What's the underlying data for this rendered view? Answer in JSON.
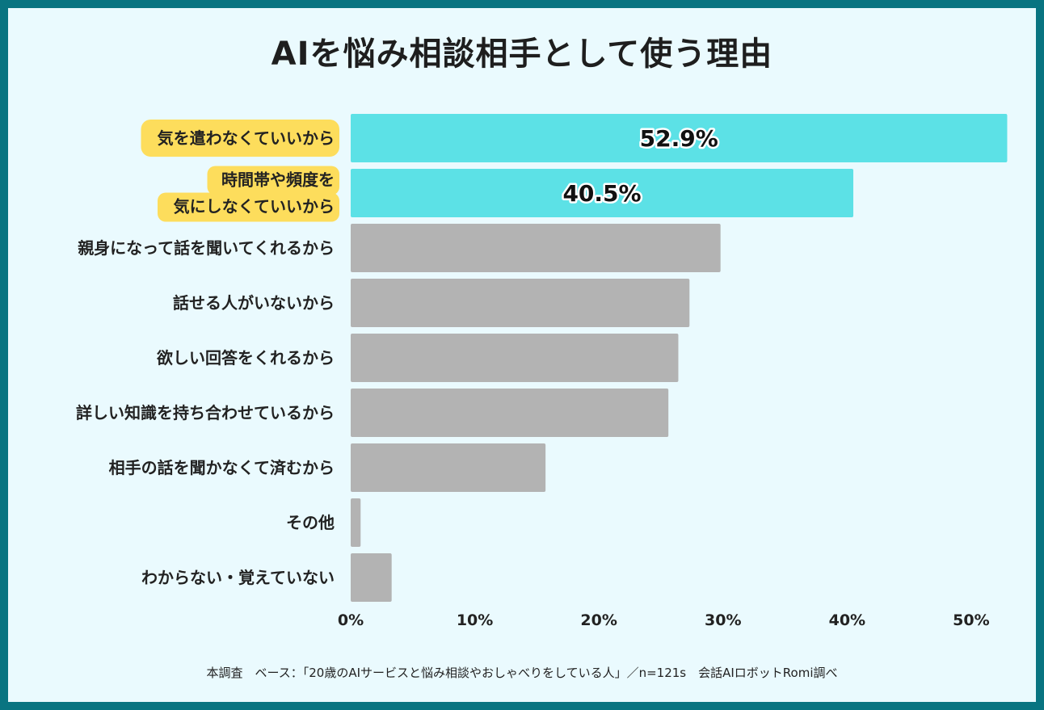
{
  "chart_data": {
    "type": "bar",
    "orientation": "horizontal",
    "title": "AIを悩み相談相手として使う理由",
    "categories": [
      "気を遣わなくていいから",
      "時間帯や頻度を\n気にしなくていいから",
      "親身になって話を聞いてくれるから",
      "話せる人がいないから",
      "欲しい回答をくれるから",
      "詳しい知識を持ち合わせているから",
      "相手の話を聞かなくて済むから",
      "その他",
      "わからない・覚えていない"
    ],
    "values": [
      52.9,
      40.5,
      29.8,
      27.3,
      26.4,
      25.6,
      15.7,
      0.8,
      3.3
    ],
    "data_labels": [
      "52.9%",
      "40.5%",
      "",
      "",
      "",
      "",
      "",
      "",
      ""
    ],
    "highlighted": [
      true,
      true,
      false,
      false,
      false,
      false,
      false,
      false,
      false
    ],
    "xlim": [
      0,
      53
    ],
    "xticks": [
      0,
      10,
      20,
      30,
      40,
      50
    ],
    "xtick_labels": [
      "0%",
      "10%",
      "20%",
      "30%",
      "40%",
      "50%"
    ],
    "xlabel": "",
    "ylabel": "",
    "grid": false,
    "colors": {
      "highlight_bar": "#5ce1e6",
      "default_bar": "#b3b3b3",
      "highlight_label_bg": "#fddd5c"
    }
  },
  "footnote": "本調査　ベース：「20歳のAIサービスと悩み相談やおしゃべりをしている人」／n=121s　会話AIロボットRomi調べ"
}
